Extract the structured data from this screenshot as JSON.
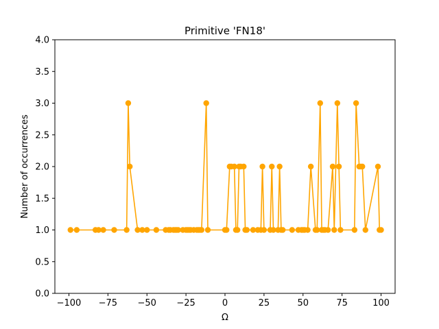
{
  "chart_data": {
    "type": "line",
    "title": "Primitive 'FN18'",
    "xlabel": "Ω",
    "ylabel": "Number of occurrences",
    "xlim": [
      -109,
      109
    ],
    "ylim": [
      0.0,
      4.0
    ],
    "xticks": [
      -100,
      -75,
      -50,
      -25,
      0,
      25,
      50,
      75,
      100
    ],
    "xtick_labels": [
      "−100",
      "−75",
      "−50",
      "−25",
      "0",
      "25",
      "50",
      "75",
      "100"
    ],
    "yticks": [
      0.0,
      0.5,
      1.0,
      1.5,
      2.0,
      2.5,
      3.0,
      3.5,
      4.0
    ],
    "ytick_labels": [
      "0.0",
      "0.5",
      "1.0",
      "1.5",
      "2.0",
      "2.5",
      "3.0",
      "3.5",
      "4.0"
    ],
    "grid": false,
    "legend": "none",
    "color": "#ffa500",
    "series": [
      {
        "x": [
          -99,
          -95,
          -83,
          -81,
          -78,
          -71,
          -63,
          -62,
          -61,
          -56,
          -53,
          -50,
          -44,
          -38,
          -36,
          -35,
          -33,
          -32,
          -31,
          -30,
          -27,
          -25,
          -24,
          -23,
          -22,
          -20,
          -18,
          -17,
          -16,
          -15,
          -12,
          -11,
          0,
          1,
          3,
          4,
          6,
          7,
          8,
          9,
          10,
          12,
          13,
          14,
          18,
          21,
          23,
          24,
          25,
          29,
          30,
          31,
          34,
          35,
          36,
          37,
          43,
          47,
          49,
          50,
          51,
          53,
          55,
          58,
          59,
          61,
          62,
          63,
          64,
          66,
          69,
          70,
          72,
          73,
          74,
          83,
          84,
          86,
          87,
          88,
          90,
          98,
          99,
          100
        ],
        "y": [
          1,
          1,
          1,
          1,
          1,
          1,
          1,
          3,
          2,
          1,
          1,
          1,
          1,
          1,
          1,
          1,
          1,
          1,
          1,
          1,
          1,
          1,
          1,
          1,
          1,
          1,
          1,
          1,
          1,
          1,
          3,
          1,
          1,
          1,
          2,
          2,
          2,
          1,
          1,
          2,
          2,
          2,
          1,
          1,
          1,
          1,
          1,
          2,
          1,
          1,
          2,
          1,
          1,
          2,
          1,
          1,
          1,
          1,
          1,
          1,
          1,
          1,
          2,
          1,
          1,
          3,
          1,
          1,
          1,
          1,
          2,
          1,
          3,
          2,
          1,
          1,
          3,
          2,
          2,
          2,
          1,
          2,
          1,
          1
        ]
      }
    ]
  }
}
